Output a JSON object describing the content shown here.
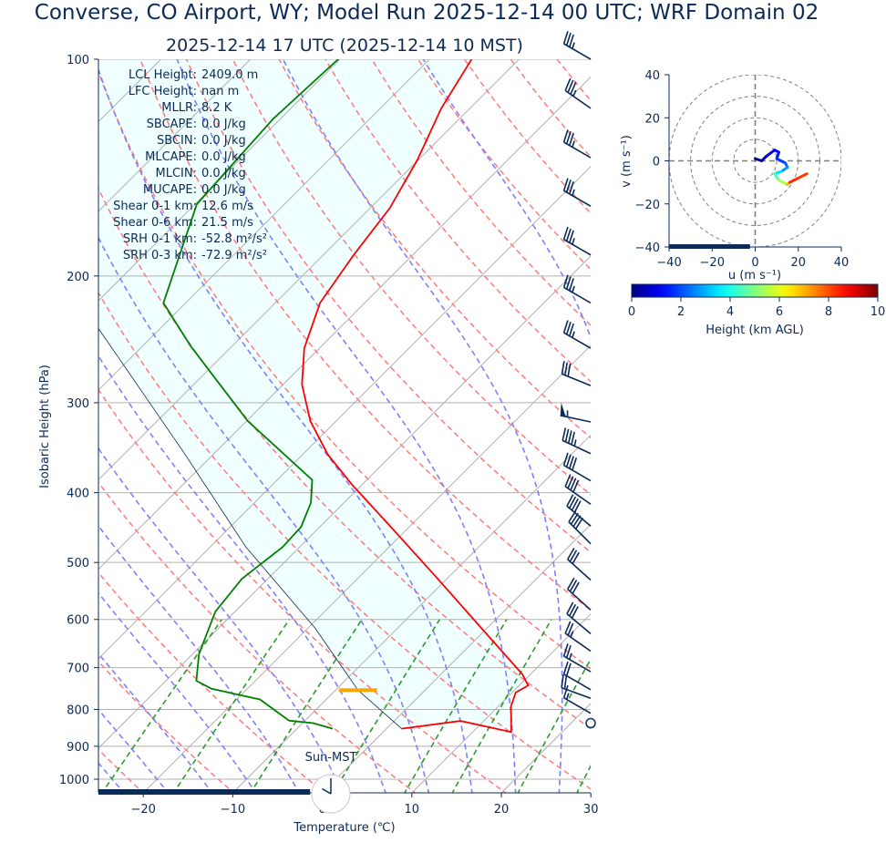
{
  "title": "Converse, CO Airport, WY; Model Run 2025-12-14 00 UTC; WRF Domain 02",
  "subtitle": "2025-12-14 17 UTC  (2025-12-14 10 MST)",
  "colors": {
    "text": "#0b2a55",
    "temperature": "#ff0000",
    "dewpoint": "#008000",
    "dry_adiabat": "#ff8080",
    "moist_adiabat": "#8080ff",
    "mixing_ratio": "#2a9d2a",
    "isotherm": "#b0b0b0",
    "cin_fill": "#f0ffff",
    "lcl_marker": "#ffa500",
    "bar": "#0b2a55"
  },
  "stats": [
    {
      "label": "LCL Height:",
      "value": "2409.0 m"
    },
    {
      "label": "LFC Height:",
      "value": "nan m"
    },
    {
      "label": "MLLR:",
      "value": "8.2 K"
    },
    {
      "label": "SBCAPE:",
      "value": "0.0 J/kg"
    },
    {
      "label": "SBCIN:",
      "value": "0.0 J/kg"
    },
    {
      "label": "MLCAPE:",
      "value": "0.0 J/kg"
    },
    {
      "label": "MLCIN:",
      "value": "0.0 J/kg"
    },
    {
      "label": "MUCAPE:",
      "value": "0.0 J/kg"
    },
    {
      "label": "Shear 0-1 km:",
      "value": "12.6 m/s"
    },
    {
      "label": "Shear 0-6 km:",
      "value": "21.5 m/s"
    },
    {
      "label": "SRH 0-1 km:",
      "value": "-52.8 m²/s²"
    },
    {
      "label": "SRH 0-3 km:",
      "value": "-72.9 m²/s²"
    }
  ],
  "clock": {
    "label": "Sun-MST",
    "hour": 10,
    "minute": 0
  },
  "time_progress": 0.43,
  "chart_data": [
    {
      "type": "line",
      "name": "skew-t",
      "xlabel": "Temperature (℃)",
      "ylabel": "Isobaric Height (hPa)",
      "xlim": [
        -25,
        30
      ],
      "ylim": [
        1044,
        100
      ],
      "xticks": [
        "−20",
        "−10",
        "0",
        "10",
        "20",
        "30"
      ],
      "xtick_values": [
        -20,
        -10,
        0,
        10,
        20,
        30
      ],
      "yticks": [
        "100",
        "200",
        "300",
        "400",
        "500",
        "600",
        "700",
        "800",
        "900",
        "1000"
      ],
      "ytick_values": [
        100,
        200,
        300,
        400,
        500,
        600,
        700,
        800,
        900,
        1000
      ],
      "grid": true,
      "temperature": {
        "p": [
          100,
          117,
          138,
          161,
          187,
          218,
          252,
          283,
          318,
          354,
          390,
          448,
          527,
          621,
          715,
          741,
          758,
          792,
          860,
          830,
          851
        ],
        "t": [
          -65.3,
          -63.2,
          -60.1,
          -57.8,
          -56.6,
          -55.0,
          -51.7,
          -47.9,
          -42.9,
          -37.2,
          -31.1,
          -21.8,
          -11.0,
          -0.2,
          9.1,
          11.0,
          10.4,
          11.4,
          14.3,
          7.4,
          1.7
        ]
      },
      "dewpoint": {
        "p": [
          100,
          121,
          159,
          218,
          250,
          318,
          384,
          413,
          446,
          476,
          527,
          585,
          670,
          730,
          749,
          775,
          829,
          836,
          851
        ],
        "t": [
          -80.2,
          -80.8,
          -79.8,
          -72.5,
          -64.7,
          -49.9,
          -36.1,
          -33.7,
          -32.1,
          -31.9,
          -32.9,
          -32.2,
          -29.3,
          -26.6,
          -24.0,
          -17.4,
          -11.8,
          -8.8,
          -6.0
        ]
      },
      "parcel": {
        "p": [
          851,
          752,
          617,
          476,
          350,
          237,
          100
        ],
        "t": [
          1.7,
          -7.5,
          -19.2,
          -36.0,
          -53.8,
          -76.8,
          -130
        ]
      },
      "lcl_pressure": 752,
      "dry_adiabats_theta_K": [
        230,
        240,
        250,
        260,
        270,
        280,
        290,
        300,
        310,
        320,
        330,
        340,
        350,
        360,
        370,
        380,
        390,
        400,
        410,
        420,
        430,
        440,
        450,
        460
      ],
      "moist_adiabats_T1000_C": [
        -25,
        -20,
        -15,
        -10,
        -5,
        0,
        5,
        10,
        15,
        20,
        25,
        30,
        35,
        40
      ],
      "mixing_ratio_gkg": [
        0.5,
        1,
        2,
        4,
        7,
        10,
        16,
        24
      ],
      "isotherms_C": [
        -120,
        -110,
        -100,
        -90,
        -80,
        -70,
        -60,
        -50,
        -40,
        -30,
        -20,
        -10,
        0,
        10,
        20,
        30,
        40
      ],
      "wind_barbs": [
        {
          "p": 100,
          "dir": 300,
          "kt": 35
        },
        {
          "p": 117,
          "dir": 305,
          "kt": 35
        },
        {
          "p": 137,
          "dir": 300,
          "kt": 35
        },
        {
          "p": 160,
          "dir": 300,
          "kt": 35
        },
        {
          "p": 187,
          "dir": 300,
          "kt": 35
        },
        {
          "p": 218,
          "dir": 300,
          "kt": 35
        },
        {
          "p": 252,
          "dir": 300,
          "kt": 35
        },
        {
          "p": 284,
          "dir": 292,
          "kt": 30
        },
        {
          "p": 319,
          "dir": 282,
          "kt": 55
        },
        {
          "p": 353,
          "dir": 295,
          "kt": 45
        },
        {
          "p": 385,
          "dir": 300,
          "kt": 40
        },
        {
          "p": 415,
          "dir": 305,
          "kt": 40
        },
        {
          "p": 445,
          "dir": 310,
          "kt": 40
        },
        {
          "p": 471,
          "dir": 315,
          "kt": 40
        },
        {
          "p": 529,
          "dir": 312,
          "kt": 30
        },
        {
          "p": 582,
          "dir": 312,
          "kt": 30
        },
        {
          "p": 628,
          "dir": 310,
          "kt": 30
        },
        {
          "p": 664,
          "dir": 305,
          "kt": 25
        },
        {
          "p": 709,
          "dir": 300,
          "kt": 25
        },
        {
          "p": 751,
          "dir": 300,
          "kt": 20
        },
        {
          "p": 772,
          "dir": 290,
          "kt": 20
        },
        {
          "p": 810,
          "dir": 300,
          "kt": 15
        },
        {
          "p": 836,
          "dir": 0,
          "kt": 0
        }
      ]
    },
    {
      "type": "line",
      "name": "hodograph",
      "xlabel": "u (m s⁻¹)",
      "ylabel": "v (m s⁻¹)",
      "xlim": [
        -40,
        40
      ],
      "ylim": [
        -40,
        40
      ],
      "xticks": [
        "−40",
        "−20",
        "0",
        "20",
        "40"
      ],
      "yticks": [
        "40",
        "20",
        "0",
        "−20",
        "−40"
      ],
      "tick_values": [
        -40,
        -20,
        0,
        20,
        40
      ],
      "rings": [
        10,
        20,
        30,
        40
      ],
      "u": [
        0,
        3,
        5,
        9,
        11,
        10,
        14,
        15,
        12,
        9,
        11,
        15,
        16,
        20,
        24
      ],
      "v": [
        1,
        0,
        2,
        5,
        4,
        1,
        -1,
        -3,
        -5,
        -6,
        -9,
        -11,
        -10,
        -8,
        -6
      ],
      "height_km": [
        0,
        0.3,
        0.6,
        1,
        1.3,
        1.6,
        2,
        2.4,
        3,
        4,
        5,
        6,
        8,
        8.6,
        7.8
      ],
      "time_progress": 0.47,
      "colorbar": {
        "label": "Height (km AGL)",
        "ticks": [
          "0",
          "2",
          "4",
          "6",
          "8",
          "10"
        ],
        "range": [
          0,
          10
        ]
      }
    }
  ]
}
